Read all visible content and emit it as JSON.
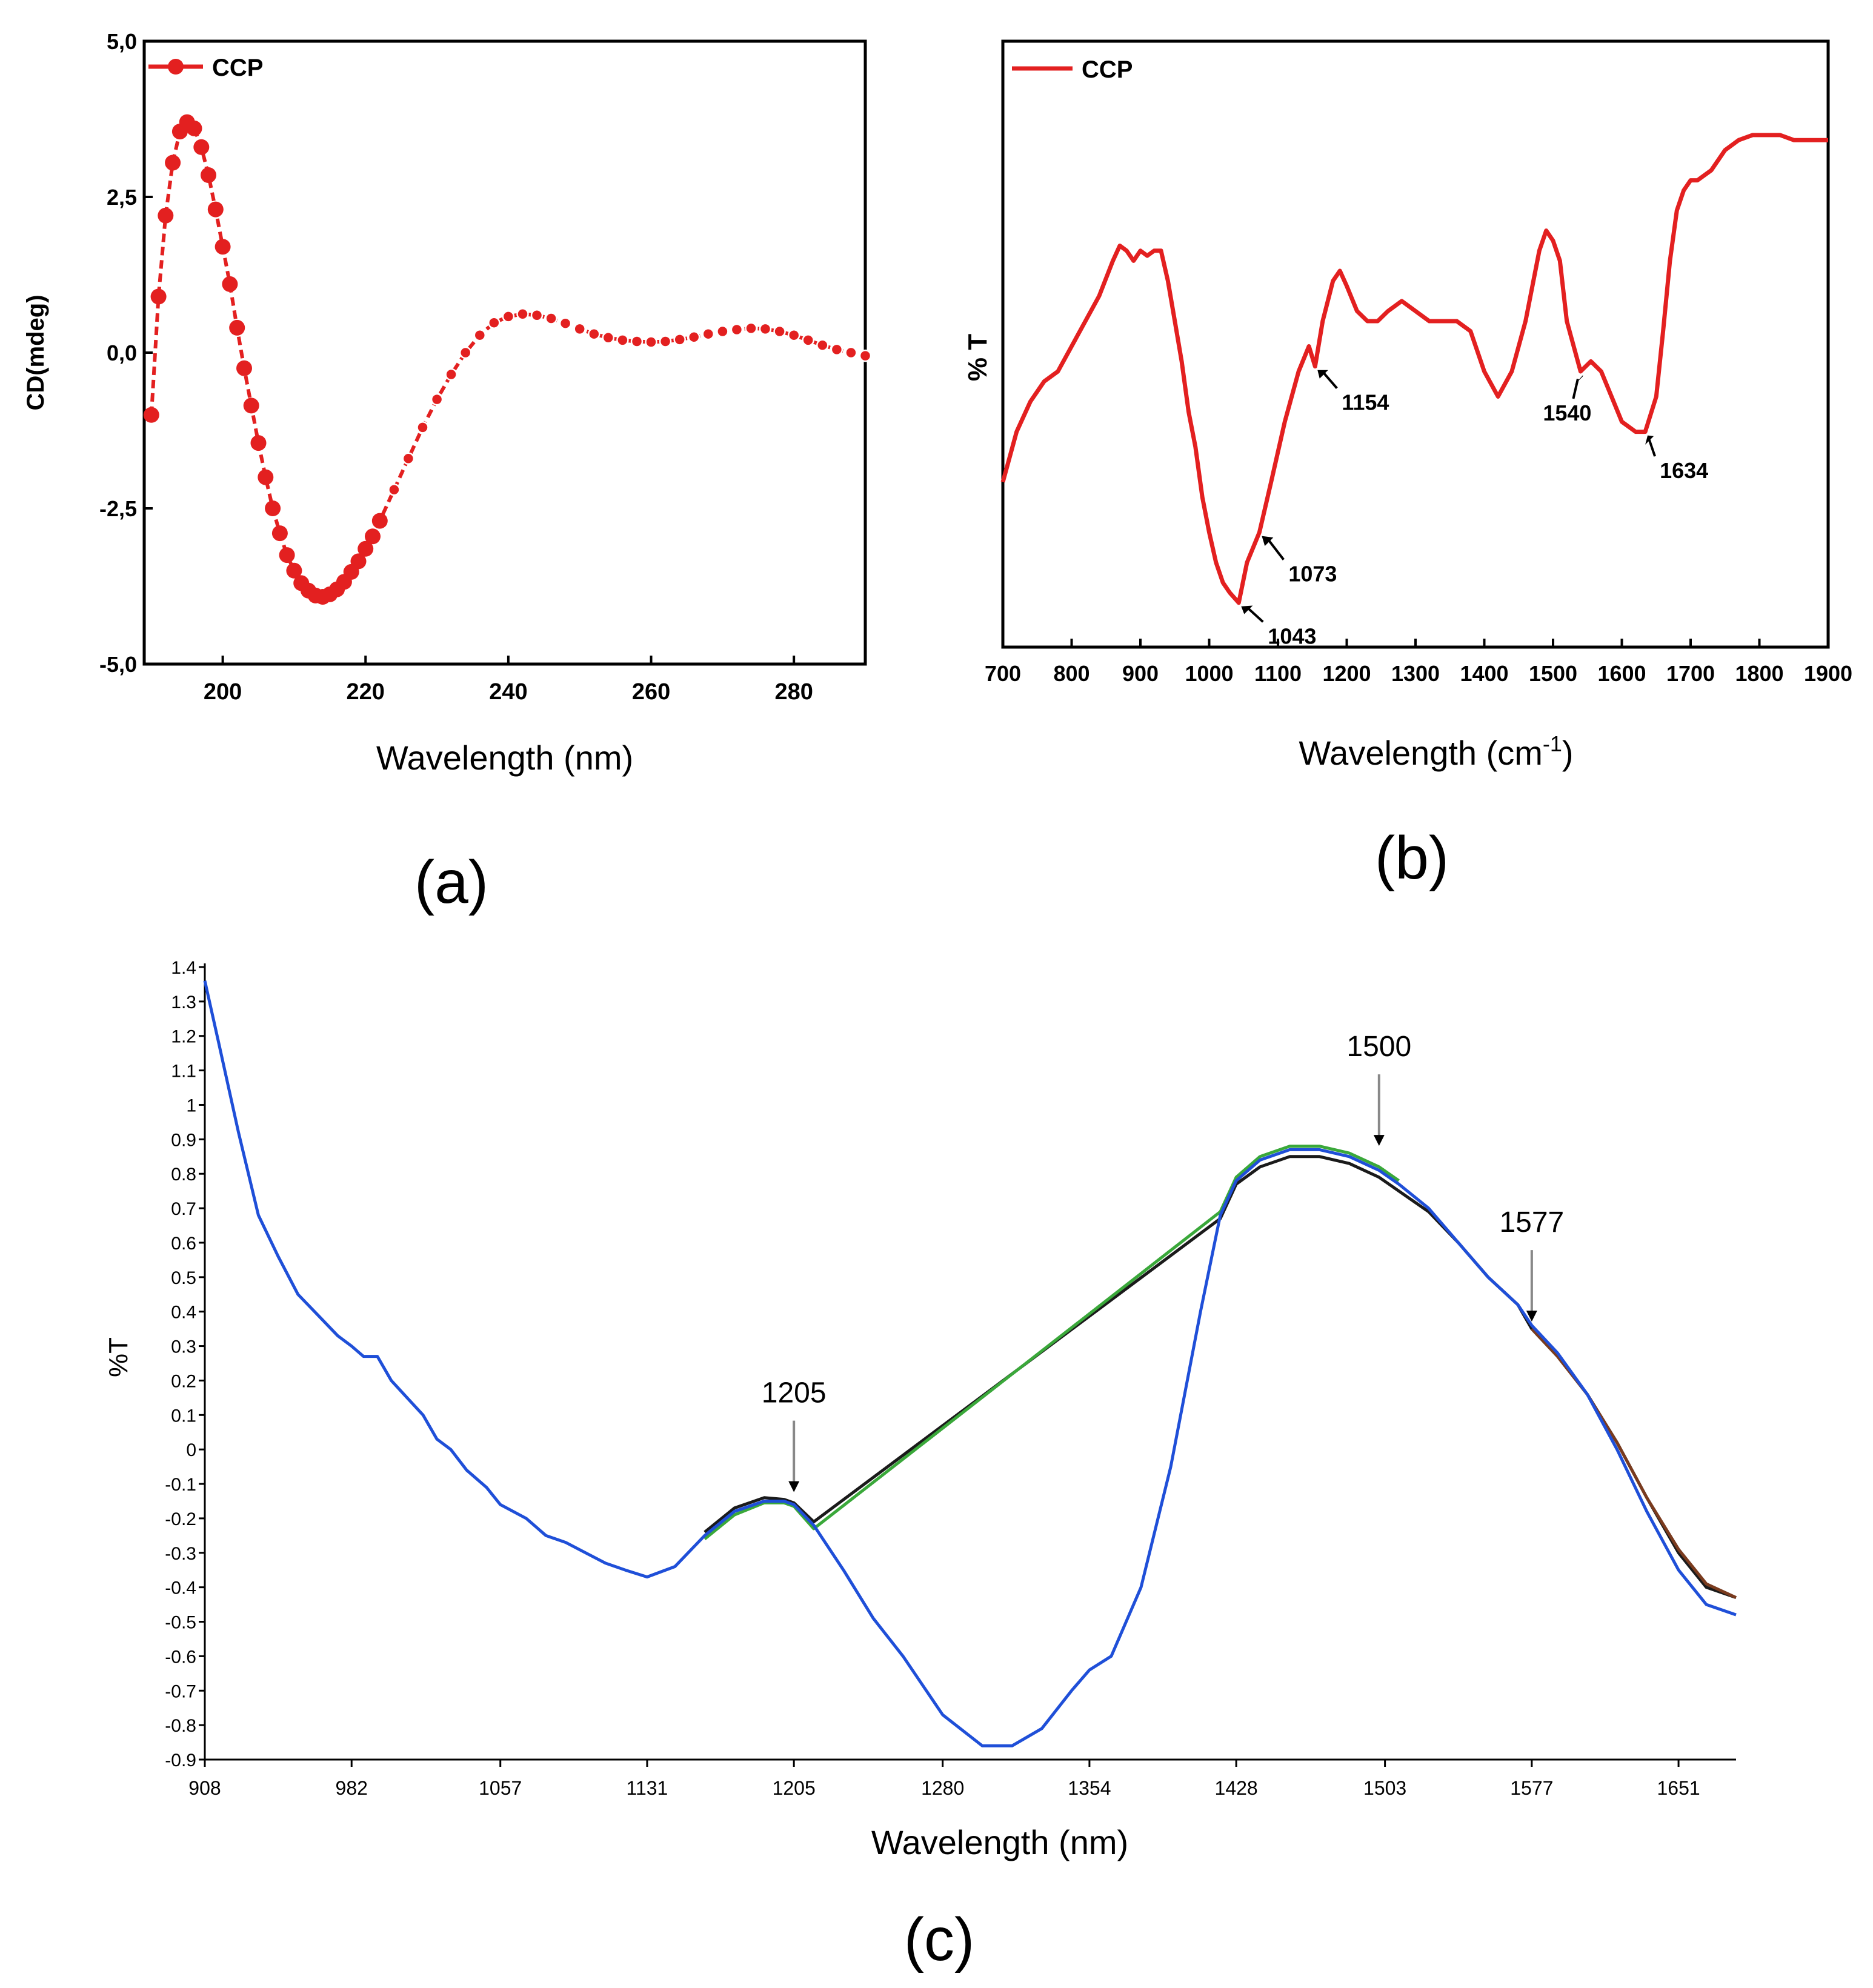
{
  "chart_data": [
    {
      "panel": "(a)",
      "type": "line",
      "xlabel": "Wavelength (nm)",
      "ylabel": "CD(mdeg)",
      "xlim": [
        189,
        290
      ],
      "ylim": [
        -5.0,
        5.0
      ],
      "xticks": [
        200,
        220,
        240,
        260,
        280
      ],
      "yticks": [
        "5,0",
        "2,5",
        "0,0",
        "-2,5",
        "-5,0"
      ],
      "ytick_values": [
        5.0,
        2.5,
        0.0,
        -2.5,
        -5.0
      ],
      "legend": "CCP",
      "color": "#e32020",
      "series": [
        {
          "name": "CCP",
          "x": [
            190,
            191,
            192,
            193,
            194,
            195,
            196,
            197,
            198,
            199,
            200,
            201,
            202,
            203,
            204,
            205,
            206,
            207,
            208,
            209,
            210,
            211,
            212,
            213,
            214,
            215,
            216,
            217,
            218,
            219,
            220,
            221,
            222,
            224,
            226,
            228,
            230,
            232,
            234,
            236,
            238,
            240,
            242,
            244,
            246,
            248,
            250,
            252,
            254,
            256,
            258,
            260,
            262,
            264,
            266,
            268,
            270,
            272,
            274,
            276,
            278,
            280,
            282,
            284,
            286,
            288,
            290
          ],
          "y": [
            -1.0,
            0.9,
            2.2,
            3.05,
            3.55,
            3.7,
            3.6,
            3.3,
            2.85,
            2.3,
            1.7,
            1.1,
            0.4,
            -0.25,
            -0.85,
            -1.45,
            -2.0,
            -2.5,
            -2.9,
            -3.25,
            -3.5,
            -3.7,
            -3.82,
            -3.9,
            -3.92,
            -3.88,
            -3.8,
            -3.68,
            -3.52,
            -3.35,
            -3.15,
            -2.95,
            -2.7,
            -2.2,
            -1.7,
            -1.2,
            -0.75,
            -0.35,
            0.0,
            0.28,
            0.48,
            0.58,
            0.62,
            0.6,
            0.55,
            0.47,
            0.38,
            0.3,
            0.24,
            0.2,
            0.18,
            0.17,
            0.18,
            0.21,
            0.25,
            0.3,
            0.34,
            0.37,
            0.39,
            0.38,
            0.34,
            0.28,
            0.2,
            0.12,
            0.05,
            0.0,
            -0.05
          ]
        }
      ]
    },
    {
      "panel": "(b)",
      "type": "line",
      "xlabel": "Wavelength (cm",
      "xlabel_sup": "-1",
      "xlabel_end": ")",
      "ylabel": "% T",
      "xlim": [
        700,
        1900
      ],
      "ylim": [
        0,
        100
      ],
      "xticks": [
        700,
        800,
        900,
        1000,
        1100,
        1200,
        1300,
        1400,
        1500,
        1600,
        1700,
        1800,
        1900
      ],
      "legend": "CCP",
      "color": "#e32020",
      "annotations": [
        "1043",
        "1073",
        "1154",
        "1540",
        "1634"
      ],
      "annotation_x": [
        1043,
        1073,
        1154,
        1540,
        1634
      ],
      "series": [
        {
          "name": "CCP",
          "x": [
            700,
            720,
            740,
            760,
            780,
            800,
            820,
            840,
            860,
            870,
            880,
            890,
            900,
            910,
            920,
            930,
            940,
            950,
            960,
            970,
            980,
            990,
            1000,
            1010,
            1020,
            1030,
            1043,
            1055,
            1073,
            1090,
            1110,
            1130,
            1145,
            1154,
            1165,
            1180,
            1190,
            1200,
            1215,
            1230,
            1245,
            1260,
            1280,
            1300,
            1320,
            1340,
            1360,
            1380,
            1400,
            1420,
            1440,
            1460,
            1480,
            1490,
            1500,
            1510,
            1520,
            1540,
            1555,
            1570,
            1585,
            1600,
            1620,
            1634,
            1650,
            1660,
            1670,
            1680,
            1690,
            1700,
            1710,
            1730,
            1750,
            1770,
            1790,
            1810,
            1830,
            1850,
            1870,
            1900
          ],
          "y": [
            28,
            38,
            44,
            48,
            50,
            55,
            60,
            65,
            72,
            75,
            74,
            72,
            74,
            73,
            74,
            74,
            68,
            60,
            52,
            42,
            35,
            25,
            18,
            12,
            8,
            6,
            4,
            12,
            18,
            28,
            40,
            50,
            55,
            51,
            60,
            68,
            70,
            67,
            62,
            60,
            60,
            62,
            64,
            62,
            60,
            60,
            60,
            58,
            50,
            45,
            50,
            60,
            74,
            78,
            76,
            72,
            60,
            50,
            52,
            50,
            45,
            40,
            38,
            38,
            45,
            58,
            72,
            82,
            86,
            88,
            88,
            90,
            94,
            96,
            97,
            97,
            97,
            96,
            96,
            96
          ]
        }
      ]
    },
    {
      "panel": "(c)",
      "type": "line",
      "xlabel": "Wavelength (nm)",
      "ylabel": "%T",
      "xlim": [
        908,
        1680
      ],
      "ylim": [
        -0.9,
        1.4
      ],
      "xticks": [
        908,
        982,
        1057,
        1131,
        1205,
        1280,
        1354,
        1428,
        1503,
        1577,
        1651
      ],
      "yticks": [
        "1.4",
        "1.3",
        "1.2",
        "1.1",
        "1",
        "0.9",
        "0.8",
        "0.7",
        "0.6",
        "0.5",
        "0.4",
        "0.3",
        "0.2",
        "0.1",
        "0",
        "-0.1",
        "-0.2",
        "-0.3",
        "-0.4",
        "-0.5",
        "-0.6",
        "-0.7",
        "-0.8",
        "-0.9"
      ],
      "ytick_values": [
        1.4,
        1.3,
        1.2,
        1.1,
        1.0,
        0.9,
        0.8,
        0.7,
        0.6,
        0.5,
        0.4,
        0.3,
        0.2,
        0.1,
        0.0,
        -0.1,
        -0.2,
        -0.3,
        -0.4,
        -0.5,
        -0.6,
        -0.7,
        -0.8,
        -0.9
      ],
      "annotations": [
        "1205",
        "1500",
        "1577"
      ],
      "annotation_x": [
        1205,
        1500,
        1577
      ],
      "annotation_y": [
        -0.145,
        0.86,
        0.35
      ],
      "series": [
        {
          "name": "blue",
          "color": "#1f4fd8",
          "x": [
            908,
            915,
            925,
            935,
            945,
            955,
            965,
            975,
            982,
            988,
            995,
            1002,
            1010,
            1018,
            1025,
            1032,
            1040,
            1050,
            1057,
            1070,
            1080,
            1090,
            1100,
            1110,
            1120,
            1131,
            1145,
            1160,
            1175,
            1190,
            1200,
            1205,
            1215,
            1230,
            1245,
            1260,
            1280,
            1300,
            1315,
            1330,
            1345,
            1354,
            1365,
            1380,
            1395,
            1410,
            1420,
            1428,
            1440,
            1455,
            1470,
            1485,
            1500,
            1510,
            1525,
            1540,
            1555,
            1570,
            1577,
            1590,
            1605,
            1620,
            1635,
            1651,
            1665,
            1680
          ],
          "y": [
            1.36,
            1.18,
            0.92,
            0.68,
            0.56,
            0.45,
            0.39,
            0.33,
            0.3,
            0.27,
            0.27,
            0.2,
            0.15,
            0.1,
            0.03,
            0.0,
            -0.06,
            -0.11,
            -0.16,
            -0.2,
            -0.25,
            -0.27,
            -0.3,
            -0.33,
            -0.35,
            -0.37,
            -0.34,
            -0.25,
            -0.18,
            -0.15,
            -0.15,
            -0.16,
            -0.22,
            -0.35,
            -0.49,
            -0.6,
            -0.77,
            -0.86,
            -0.86,
            -0.81,
            -0.7,
            -0.64,
            -0.6,
            -0.4,
            -0.05,
            0.4,
            0.68,
            0.78,
            0.84,
            0.87,
            0.87,
            0.85,
            0.81,
            0.77,
            0.7,
            0.6,
            0.5,
            0.42,
            0.36,
            0.28,
            0.16,
            0.0,
            -0.18,
            -0.35,
            -0.45,
            -0.48
          ]
        },
        {
          "name": "black",
          "color": "#1a1a1a",
          "x": [
            1160,
            1175,
            1190,
            1200,
            1205,
            1215,
            1420,
            1428,
            1440,
            1455,
            1470,
            1485,
            1500,
            1510,
            1525,
            1540,
            1555,
            1570,
            1577,
            1590,
            1605,
            1620,
            1635,
            1651,
            1665,
            1680
          ],
          "y": [
            -0.24,
            -0.17,
            -0.14,
            -0.145,
            -0.155,
            -0.21,
            0.67,
            0.77,
            0.82,
            0.85,
            0.85,
            0.83,
            0.79,
            0.75,
            0.69,
            0.6,
            0.5,
            0.42,
            0.35,
            0.27,
            0.16,
            0.02,
            -0.14,
            -0.3,
            -0.4,
            -0.43
          ]
        },
        {
          "name": "green",
          "color": "#3aa83a",
          "x": [
            1160,
            1175,
            1190,
            1200,
            1205,
            1215,
            1420,
            1428,
            1440,
            1455,
            1470,
            1485,
            1500,
            1510
          ],
          "y": [
            -0.26,
            -0.19,
            -0.155,
            -0.155,
            -0.165,
            -0.23,
            0.69,
            0.79,
            0.85,
            0.88,
            0.88,
            0.86,
            0.82,
            0.78
          ]
        },
        {
          "name": "brown",
          "color": "#7a3b1e",
          "x": [
            1577,
            1590,
            1605,
            1620,
            1635,
            1651,
            1665,
            1680
          ],
          "y": [
            0.35,
            0.27,
            0.16,
            0.02,
            -0.14,
            -0.29,
            -0.39,
            -0.43
          ]
        }
      ]
    }
  ]
}
